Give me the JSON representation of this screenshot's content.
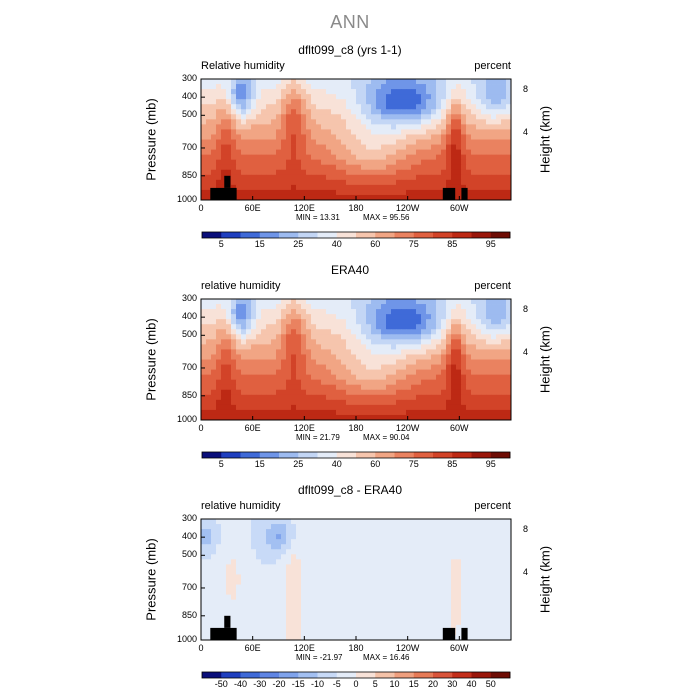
{
  "page_title": "ANN",
  "chart_data": [
    {
      "type": "heatmap",
      "title": "dflt099_c8 (yrs 1-1)",
      "subtitle_left": "Relative humidity",
      "subtitle_right": "percent",
      "ylabel": "Pressure (mb)",
      "ylabel_right": "Height (km)",
      "x_ticks": [
        "0",
        "60E",
        "120E",
        "180",
        "120W",
        "60W"
      ],
      "y_ticks": [
        "300",
        "400",
        "500",
        "700",
        "850",
        "1000"
      ],
      "y_right_ticks": [
        "8",
        "4"
      ],
      "min_label": "MIN =   13.31",
      "max_label": "MAX =   95.56",
      "colorbar_labels": [
        "5",
        "15",
        "25",
        "40",
        "60",
        "75",
        "85",
        "95"
      ],
      "colorbar_colors": [
        "#0a0f7a",
        "#1f3fbf",
        "#3f6ad8",
        "#6f95e8",
        "#9dbbf0",
        "#c3d6f5",
        "#e4ecf8",
        "#f8e2d8",
        "#f6c5ad",
        "#f1a584",
        "#ea8260",
        "#e06040",
        "#d24328",
        "#bd2914",
        "#9a160a",
        "#6e0c04"
      ],
      "ylim": [
        1000,
        300
      ],
      "xlim": [
        0,
        360
      ]
    },
    {
      "type": "heatmap",
      "title": "ERA40",
      "subtitle_left": "relative humidity",
      "subtitle_right": "percent",
      "ylabel": "Pressure (mb)",
      "ylabel_right": "Height (km)",
      "x_ticks": [
        "0",
        "60E",
        "120E",
        "180",
        "120W",
        "60W"
      ],
      "y_ticks": [
        "300",
        "400",
        "500",
        "700",
        "850",
        "1000"
      ],
      "y_right_ticks": [
        "8",
        "4"
      ],
      "min_label": "MIN =   21.79",
      "max_label": "MAX =   90.04",
      "colorbar_labels": [
        "5",
        "15",
        "25",
        "40",
        "60",
        "75",
        "85",
        "95"
      ],
      "colorbar_colors": [
        "#0a0f7a",
        "#1f3fbf",
        "#3f6ad8",
        "#6f95e8",
        "#9dbbf0",
        "#c3d6f5",
        "#e4ecf8",
        "#f8e2d8",
        "#f6c5ad",
        "#f1a584",
        "#ea8260",
        "#e06040",
        "#d24328",
        "#bd2914",
        "#9a160a",
        "#6e0c04"
      ],
      "ylim": [
        1000,
        300
      ],
      "xlim": [
        0,
        360
      ]
    },
    {
      "type": "heatmap",
      "title": "dflt099_c8 - ERA40",
      "subtitle_left": "relative humidity",
      "subtitle_right": "percent",
      "ylabel": "Pressure (mb)",
      "ylabel_right": "Height (km)",
      "x_ticks": [
        "0",
        "60E",
        "120E",
        "180",
        "120W",
        "60W"
      ],
      "y_ticks": [
        "300",
        "400",
        "500",
        "700",
        "850",
        "1000"
      ],
      "y_right_ticks": [
        "8",
        "4"
      ],
      "min_label": "MIN =  -21.97",
      "max_label": "MAX =   16.46",
      "colorbar_labels": [
        "-50",
        "-40",
        "-30",
        "-20",
        "-15",
        "-10",
        "-5",
        "0",
        "5",
        "10",
        "15",
        "20",
        "30",
        "40",
        "50"
      ],
      "colorbar_colors": [
        "#0a0f7a",
        "#1f3fbf",
        "#3f6ad8",
        "#5f85e4",
        "#7fa3ec",
        "#a3c0f2",
        "#c8daf7",
        "#e4ecf8",
        "#f8e2d8",
        "#f4c2a8",
        "#ef9f7e",
        "#e67a56",
        "#d9543a",
        "#c32e1a",
        "#9a160a",
        "#6e0c04"
      ],
      "ylim": [
        1000,
        300
      ],
      "xlim": [
        0,
        360
      ]
    }
  ]
}
